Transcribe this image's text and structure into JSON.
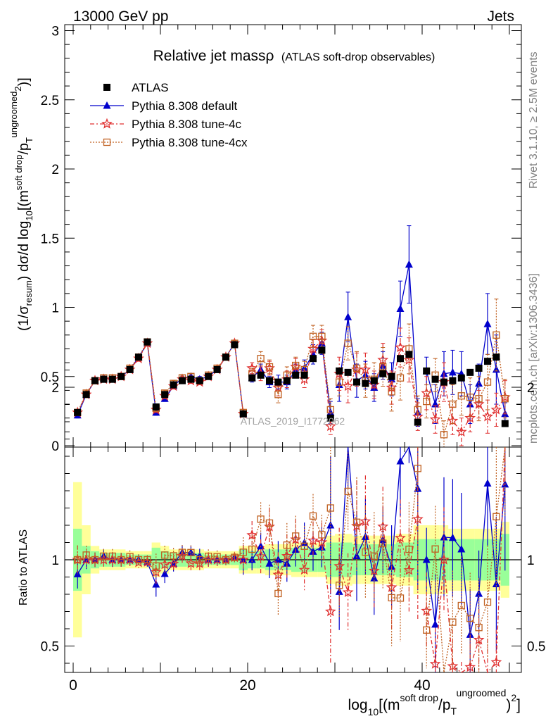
{
  "header": {
    "process": "13000 GeV pp",
    "category": "Jets"
  },
  "main_panel": {
    "title": "Relative jet massρ",
    "subtitle": "(ATLAS soft-drop observables)",
    "ylabel": {
      "prefix": "(1/σ",
      "sub": "resum",
      "mid": ") dσ/d log",
      "sub10": "10",
      "rest": "[(m",
      "sup": "soft drop",
      "slash": "/p",
      "subT": "T",
      "sup2": "ungroomed",
      "pow": "2",
      "close": ")]"
    },
    "watermark": "ATLAS_2019_I1772062",
    "y_ticks": [
      "0",
      "0.5",
      "1",
      "1.5",
      "2",
      "2.5",
      "3"
    ]
  },
  "side_labels": {
    "rivet": "Rivet 3.1.10, ≥ 2.5M events",
    "mcplots": "mcplots.cern.ch [arXiv:1306.3436]"
  },
  "ratio_panel": {
    "ylabel": "Ratio to ATLAS",
    "y_ticks": [
      "0.5",
      "1",
      "2"
    ]
  },
  "x_axis": {
    "ticks": [
      "0",
      "20",
      "40"
    ],
    "label": {
      "pre": "log",
      "sub10": "10",
      "mid": "[(m",
      "sup": "soft drop",
      "slash": "/p",
      "subT": "T",
      "sup2": "ungroomed",
      "close": ")",
      "pow": "2",
      "end": "]"
    }
  },
  "legend": [
    {
      "label": "ATLAS",
      "color": "#000000",
      "marker": "square-filled"
    },
    {
      "label": "Pythia 8.308 default",
      "color": "#0000cc",
      "marker": "triangle-filled"
    },
    {
      "label": "Pythia 8.308 tune-4c",
      "color": "#e03030",
      "marker": "star"
    },
    {
      "label": "Pythia 8.308 tune-4cx",
      "color": "#c06020",
      "marker": "square-open"
    }
  ],
  "chart_data": {
    "type": "scatter",
    "xlim": [
      -2,
      51
    ],
    "ylim": [
      0,
      3
    ],
    "ratio_ylim": [
      0.35,
      2.25
    ],
    "x": [
      0.5,
      1.5,
      2.5,
      3.5,
      4.5,
      5.5,
      6.5,
      7.5,
      8.5,
      9.5,
      10.5,
      11.5,
      12.5,
      13.5,
      14.5,
      15.5,
      16.5,
      17.5,
      18.5,
      19.5,
      20.5,
      21.5,
      22.5,
      23.5,
      24.5,
      25.5,
      26.5,
      27.5,
      28.5,
      29.5,
      30.5,
      31.5,
      32.5,
      33.5,
      34.5,
      35.5,
      36.5,
      37.5,
      38.5,
      39.5,
      40.5,
      41.5,
      42.5,
      43.5,
      44.5,
      45.5,
      46.5,
      47.5,
      48.5,
      49.5
    ],
    "data": {
      "name": "ATLAS",
      "values": [
        0.24,
        0.37,
        0.47,
        0.48,
        0.48,
        0.5,
        0.55,
        0.64,
        0.75,
        0.28,
        0.37,
        0.44,
        0.47,
        0.48,
        0.47,
        0.5,
        0.55,
        0.64,
        0.73,
        0.23,
        0.49,
        0.51,
        0.47,
        0.46,
        0.47,
        0.51,
        0.51,
        0.63,
        0.69,
        0.2,
        0.54,
        0.53,
        0.46,
        0.45,
        0.47,
        0.52,
        0.5,
        0.63,
        0.66,
        0.17,
        0.54,
        0.48,
        0.46,
        0.47,
        0.49,
        0.53,
        0.56,
        0.61,
        0.64,
        0.16
      ],
      "band_inner": [
        0.18,
        0.08,
        0.05,
        0.04,
        0.04,
        0.04,
        0.03,
        0.03,
        0.03,
        0.07,
        0.05,
        0.04,
        0.04,
        0.04,
        0.04,
        0.03,
        0.03,
        0.03,
        0.03,
        0.06,
        0.05,
        0.05,
        0.06,
        0.06,
        0.06,
        0.07,
        0.07,
        0.07,
        0.07,
        0.1,
        0.1,
        0.1,
        0.09,
        0.09,
        0.09,
        0.09,
        0.09,
        0.1,
        0.1,
        0.12,
        0.12,
        0.12,
        0.12,
        0.12,
        0.12,
        0.12,
        0.12,
        0.12,
        0.12,
        0.15
      ],
      "band_outer": [
        0.45,
        0.2,
        0.08,
        0.06,
        0.06,
        0.06,
        0.05,
        0.05,
        0.05,
        0.1,
        0.08,
        0.06,
        0.06,
        0.06,
        0.06,
        0.05,
        0.05,
        0.05,
        0.05,
        0.08,
        0.08,
        0.08,
        0.09,
        0.09,
        0.09,
        0.1,
        0.1,
        0.1,
        0.1,
        0.14,
        0.15,
        0.15,
        0.14,
        0.14,
        0.14,
        0.14,
        0.14,
        0.15,
        0.15,
        0.2,
        0.2,
        0.2,
        0.2,
        0.18,
        0.18,
        0.18,
        0.18,
        0.18,
        0.18,
        0.22
      ]
    },
    "series": [
      {
        "name": "Pythia 8.308 default",
        "values": [
          0.22,
          0.37,
          0.47,
          0.49,
          0.48,
          0.5,
          0.55,
          0.64,
          0.74,
          0.24,
          0.34,
          0.43,
          0.49,
          0.5,
          0.48,
          0.5,
          0.55,
          0.64,
          0.74,
          0.23,
          0.49,
          0.55,
          0.46,
          0.46,
          0.46,
          0.54,
          0.56,
          0.66,
          0.74,
          0.24,
          0.44,
          0.93,
          0.47,
          0.51,
          0.42,
          0.58,
          0.48,
          0.99,
          1.31,
          0.24,
          0.54,
          0.3,
          0.52,
          0.53,
          0.52,
          0.3,
          0.45,
          0.88,
          0.55,
          0.23
        ],
        "errors": [
          0.02,
          0.02,
          0.02,
          0.02,
          0.02,
          0.02,
          0.02,
          0.02,
          0.02,
          0.02,
          0.02,
          0.02,
          0.02,
          0.02,
          0.02,
          0.02,
          0.02,
          0.02,
          0.02,
          0.02,
          0.03,
          0.04,
          0.04,
          0.05,
          0.05,
          0.05,
          0.06,
          0.07,
          0.08,
          0.08,
          0.12,
          0.18,
          0.12,
          0.1,
          0.1,
          0.1,
          0.12,
          0.2,
          0.28,
          0.1,
          0.1,
          0.14,
          0.16,
          0.16,
          0.16,
          0.14,
          0.14,
          0.22,
          0.25,
          0.08
        ]
      },
      {
        "name": "Pythia 8.308 tune-4c",
        "values": [
          0.24,
          0.37,
          0.47,
          0.48,
          0.48,
          0.5,
          0.55,
          0.63,
          0.74,
          0.26,
          0.36,
          0.43,
          0.48,
          0.47,
          0.46,
          0.5,
          0.55,
          0.64,
          0.74,
          0.23,
          0.56,
          0.52,
          0.56,
          0.42,
          0.48,
          0.57,
          0.48,
          0.7,
          0.76,
          0.14,
          0.52,
          0.43,
          0.55,
          0.55,
          0.44,
          0.62,
          0.42,
          0.71,
          0.62,
          0.21,
          0.38,
          0.19,
          0.46,
          0.18,
          0.1,
          0.2,
          0.3,
          0.21,
          0.26,
          0.35
        ],
        "errors": [
          0.02,
          0.02,
          0.02,
          0.02,
          0.02,
          0.02,
          0.02,
          0.02,
          0.02,
          0.02,
          0.02,
          0.02,
          0.02,
          0.02,
          0.02,
          0.02,
          0.02,
          0.02,
          0.02,
          0.02,
          0.04,
          0.05,
          0.05,
          0.06,
          0.06,
          0.06,
          0.06,
          0.07,
          0.08,
          0.06,
          0.12,
          0.12,
          0.12,
          0.12,
          0.1,
          0.12,
          0.12,
          0.14,
          0.16,
          0.1,
          0.12,
          0.1,
          0.14,
          0.1,
          0.1,
          0.1,
          0.1,
          0.12,
          0.12,
          0.12
        ]
      },
      {
        "name": "Pythia 8.308 tune-4cx",
        "values": [
          0.24,
          0.38,
          0.47,
          0.49,
          0.49,
          0.5,
          0.56,
          0.64,
          0.75,
          0.27,
          0.38,
          0.45,
          0.49,
          0.5,
          0.47,
          0.51,
          0.56,
          0.64,
          0.74,
          0.24,
          0.52,
          0.63,
          0.57,
          0.37,
          0.51,
          0.58,
          0.55,
          0.79,
          0.79,
          0.26,
          0.46,
          0.74,
          0.56,
          0.47,
          0.48,
          0.57,
          0.39,
          0.49,
          0.7,
          0.26,
          0.32,
          0.51,
          0.08,
          0.3,
          0.36,
          0.35,
          0.34,
          0.46,
          0.8,
          0.34
        ],
        "errors": [
          0.02,
          0.02,
          0.02,
          0.02,
          0.02,
          0.02,
          0.02,
          0.02,
          0.02,
          0.02,
          0.02,
          0.02,
          0.02,
          0.02,
          0.02,
          0.02,
          0.02,
          0.02,
          0.02,
          0.02,
          0.04,
          0.05,
          0.05,
          0.06,
          0.06,
          0.06,
          0.06,
          0.08,
          0.08,
          0.08,
          0.1,
          0.12,
          0.12,
          0.12,
          0.12,
          0.14,
          0.14,
          0.16,
          0.18,
          0.1,
          0.12,
          0.12,
          0.1,
          0.14,
          0.14,
          0.14,
          0.16,
          0.2,
          0.26,
          0.14
        ]
      }
    ]
  }
}
